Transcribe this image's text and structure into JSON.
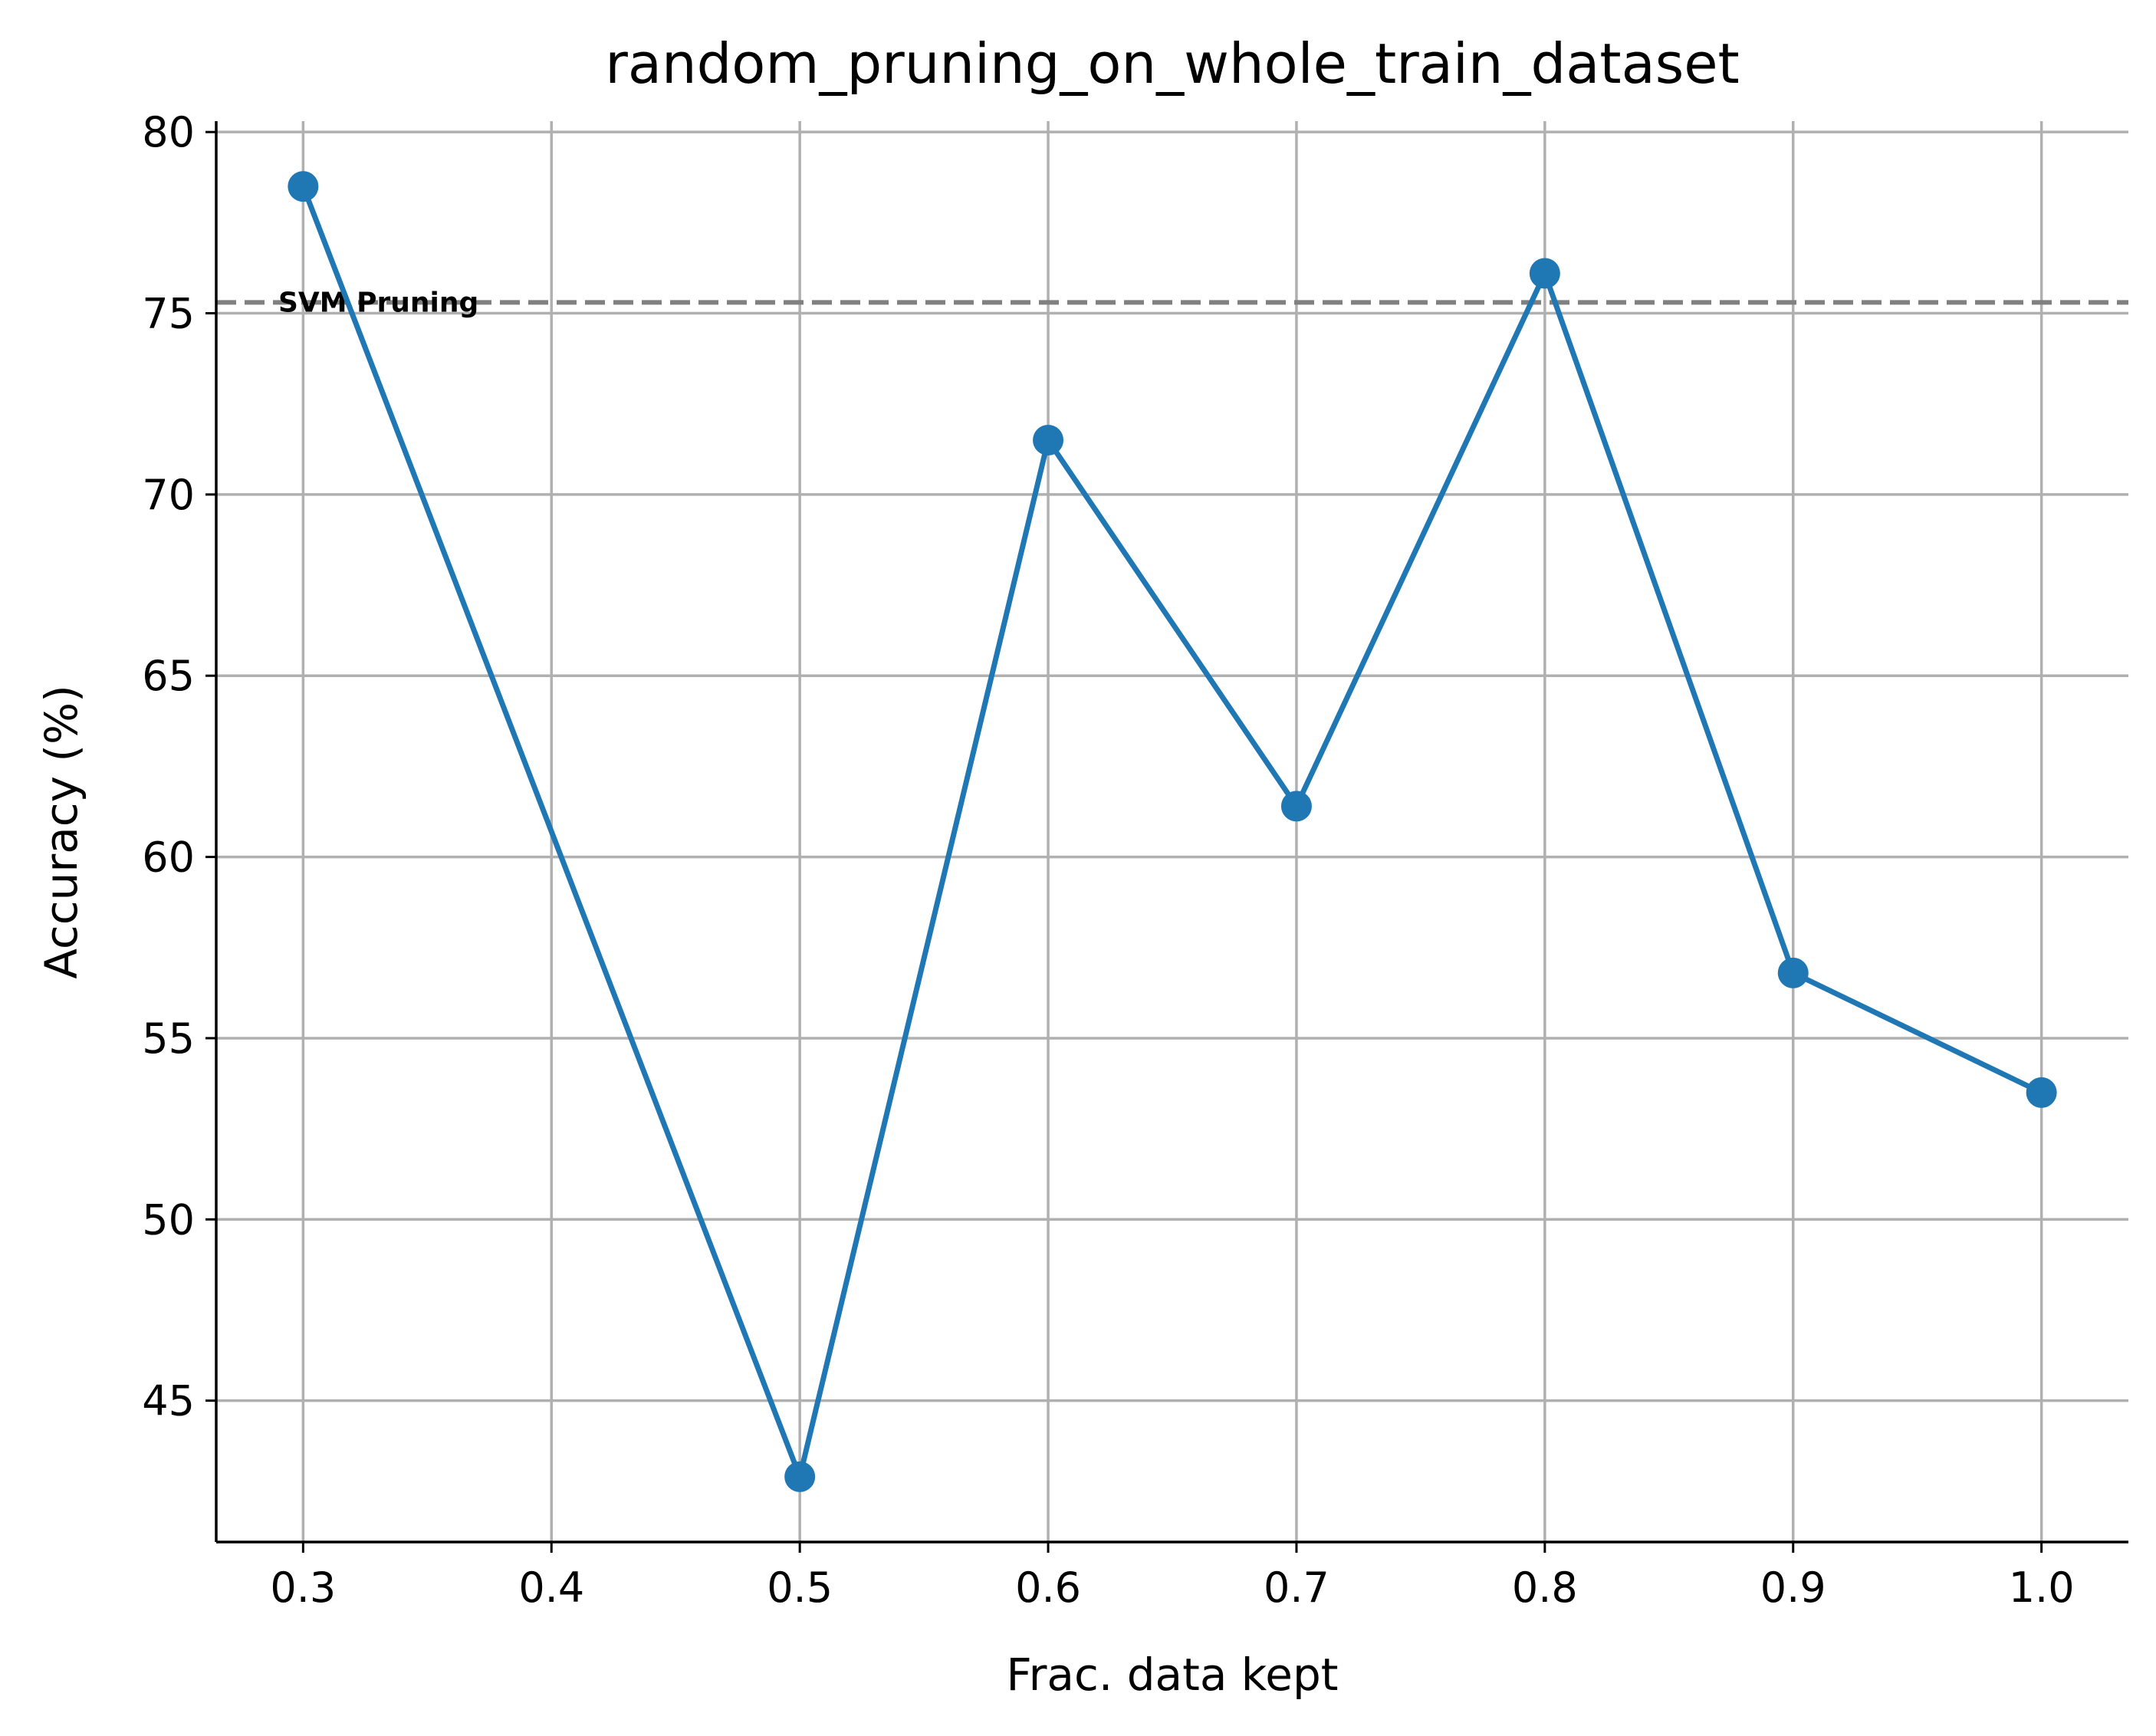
{
  "chart_data": {
    "type": "line",
    "title": "random_pruning_on_whole_train_dataset",
    "xlabel": "Frac. data kept",
    "ylabel": "Accuracy (%)",
    "xlim": [
      0.265,
      1.035
    ],
    "ylim": [
      41.1,
      80.3
    ],
    "xticks": [
      0.3,
      0.4,
      0.5,
      0.6,
      0.7,
      0.8,
      0.9,
      1.0
    ],
    "xtick_labels": [
      "0.3",
      "0.4",
      "0.5",
      "0.6",
      "0.7",
      "0.8",
      "0.9",
      "1.0"
    ],
    "yticks": [
      45,
      50,
      55,
      60,
      65,
      70,
      75,
      80
    ],
    "ytick_labels": [
      "45",
      "50",
      "55",
      "60",
      "65",
      "70",
      "75",
      "80"
    ],
    "grid": true,
    "series": [
      {
        "x": [
          0.3,
          0.5,
          0.6,
          0.7,
          0.8,
          0.9,
          1.0
        ],
        "y": [
          78.5,
          42.9,
          71.5,
          61.4,
          76.1,
          56.8,
          53.5
        ],
        "color": "#1f77b4",
        "marker": "circle"
      }
    ],
    "reference_line": {
      "y": 75.3,
      "label": "SVM Pruning",
      "style": "dashed",
      "color": "#808080"
    }
  }
}
